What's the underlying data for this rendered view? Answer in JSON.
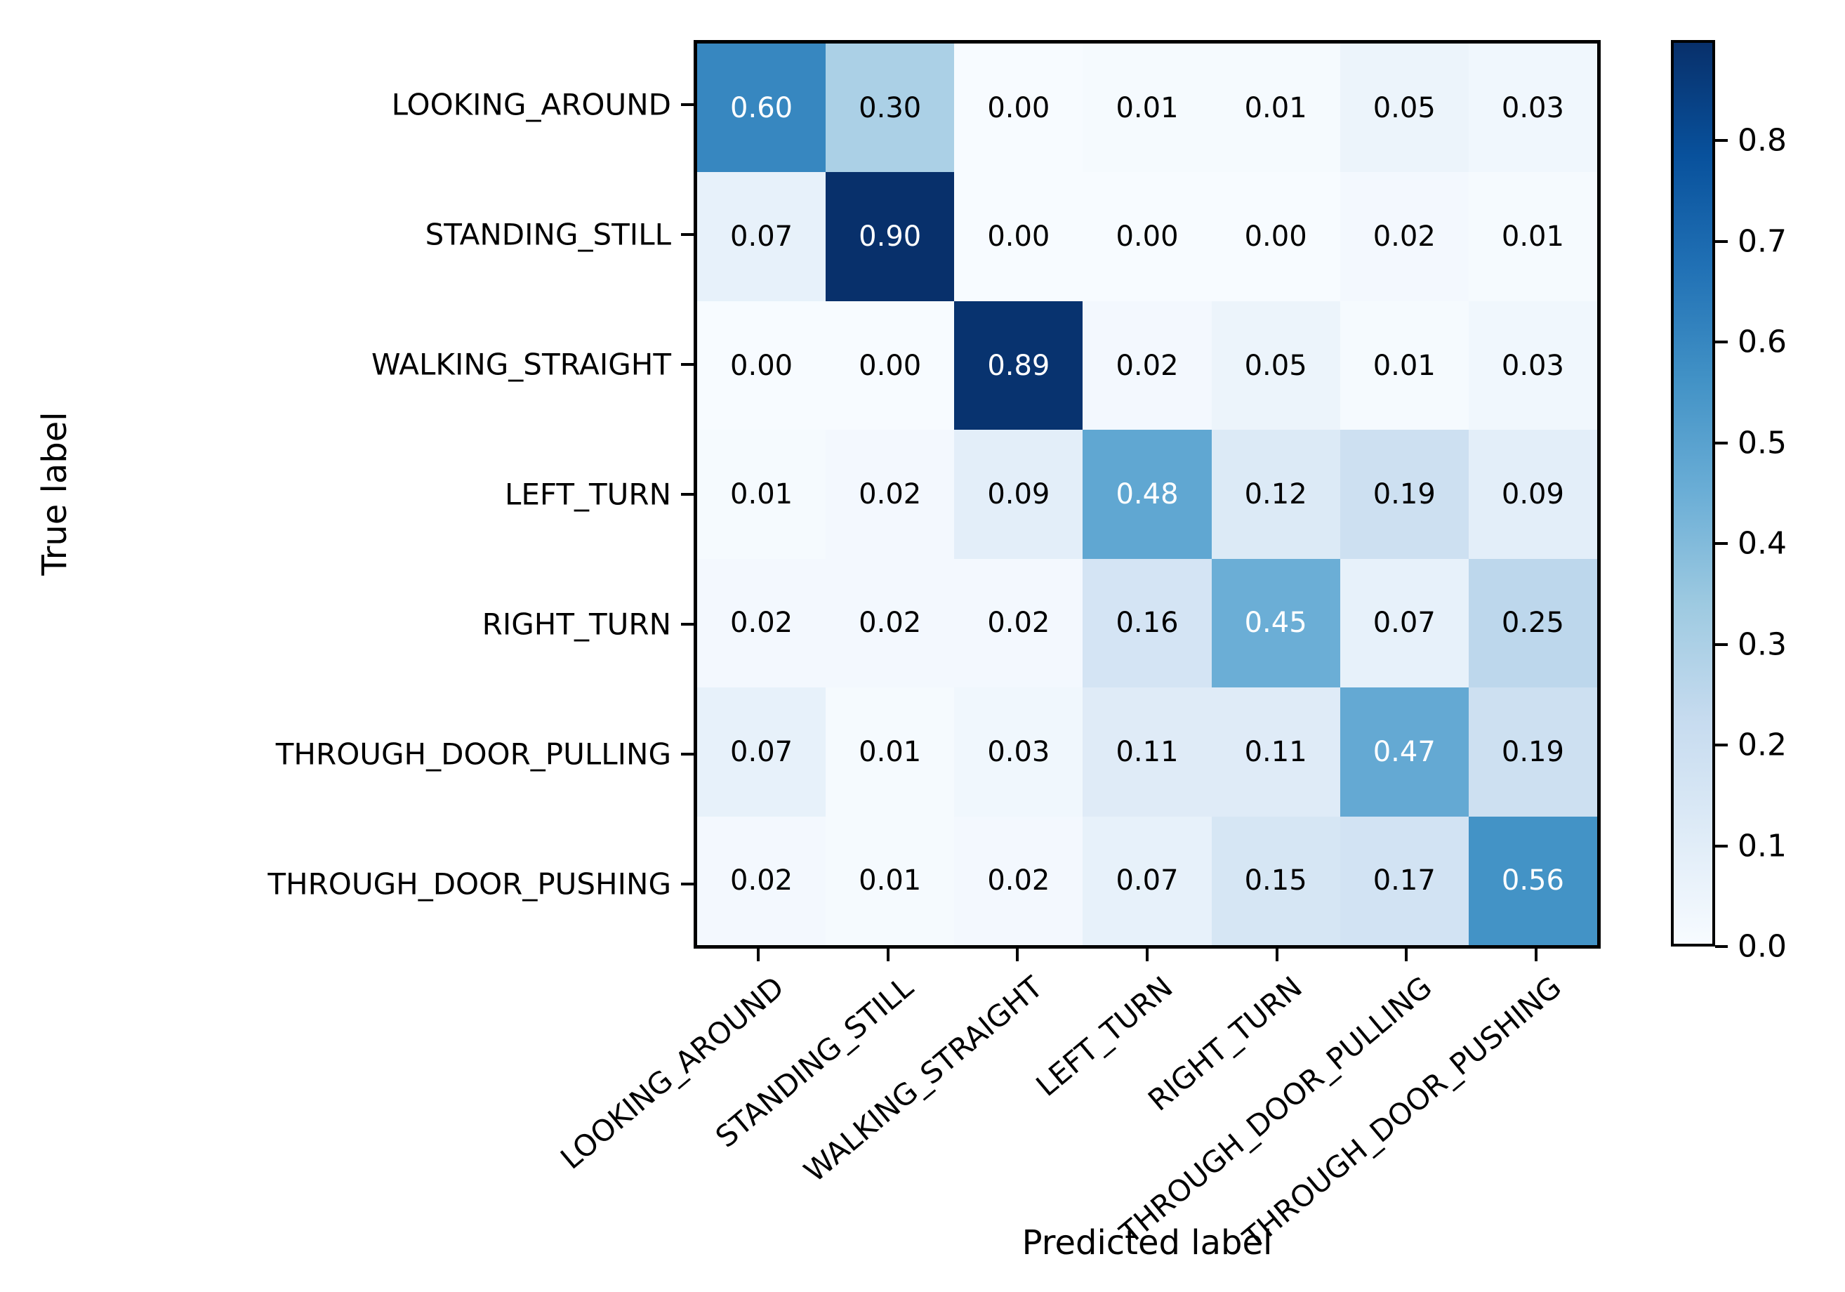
{
  "figure": {
    "background": "#ffffff"
  },
  "chart_data": {
    "type": "heatmap",
    "title": "",
    "xlabel": "Predicted label",
    "ylabel": "True label",
    "categories": [
      "LOOKING_AROUND",
      "STANDING_STILL",
      "WALKING_STRAIGHT",
      "LEFT_TURN",
      "RIGHT_TURN",
      "THROUGH_DOOR_PULLING",
      "THROUGH_DOOR_PUSHING"
    ],
    "x_tick_labels": [
      "LOOKING_AROUND",
      "STANDING_STILL",
      "WALKING_STRAIGHT",
      "LEFT_TURN",
      "RIGHT_TURN",
      "THROUGH_DOOR_PULLING",
      "THROUGH_DOOR_PUSHING"
    ],
    "y_tick_labels": [
      "LOOKING_AROUND",
      "STANDING_STILL",
      "WALKING_STRAIGHT",
      "LEFT_TURN",
      "RIGHT_TURN",
      "THROUGH_DOOR_PULLING",
      "THROUGH_DOOR_PUSHING"
    ],
    "matrix": [
      [
        0.6,
        0.3,
        0.0,
        0.01,
        0.01,
        0.05,
        0.03
      ],
      [
        0.07,
        0.9,
        0.0,
        0.0,
        0.0,
        0.02,
        0.01
      ],
      [
        0.0,
        0.0,
        0.89,
        0.02,
        0.05,
        0.01,
        0.03
      ],
      [
        0.01,
        0.02,
        0.09,
        0.48,
        0.12,
        0.19,
        0.09
      ],
      [
        0.02,
        0.02,
        0.02,
        0.16,
        0.45,
        0.07,
        0.25
      ],
      [
        0.07,
        0.01,
        0.03,
        0.11,
        0.11,
        0.47,
        0.19
      ],
      [
        0.02,
        0.01,
        0.02,
        0.07,
        0.15,
        0.17,
        0.56
      ]
    ],
    "vmin": 0.0,
    "vmax": 0.9,
    "colormap": "Blues",
    "colormap_anchors": [
      "#f7fbff",
      "#deebf7",
      "#c6dbef",
      "#9ecae1",
      "#6baed6",
      "#4292c6",
      "#2171b5",
      "#08519c",
      "#08306b"
    ],
    "cell_text_colors": {
      "light": "#ffffff",
      "dark": "#000000"
    },
    "cell_text_white_threshold": 0.45,
    "colorbar_ticks": [
      0.0,
      0.1,
      0.2,
      0.3,
      0.4,
      0.5,
      0.6,
      0.7,
      0.8
    ],
    "grid": false,
    "legend_position": "right-colorbar",
    "x_tick_rotation_deg": -40
  }
}
